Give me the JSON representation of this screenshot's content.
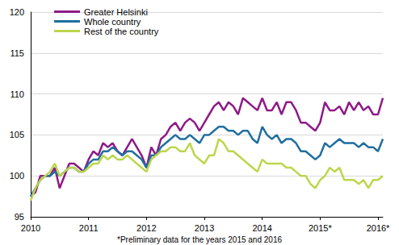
{
  "chart_data": {
    "type": "line",
    "categories": [
      "2010",
      null,
      null,
      null,
      null,
      null,
      null,
      null,
      null,
      null,
      null,
      null,
      "2011",
      null,
      null,
      null,
      null,
      null,
      null,
      null,
      null,
      null,
      null,
      null,
      "2012",
      null,
      null,
      null,
      null,
      null,
      null,
      null,
      null,
      null,
      null,
      null,
      "2013",
      null,
      null,
      null,
      null,
      null,
      null,
      null,
      null,
      null,
      null,
      null,
      "2014",
      null,
      null,
      null,
      null,
      null,
      null,
      null,
      null,
      null,
      null,
      null,
      "2015*",
      null,
      null,
      null,
      null,
      null,
      null,
      null,
      null,
      null,
      null,
      null,
      "2016*",
      null
    ],
    "series": [
      {
        "name": "Greater Helsinki",
        "color": "#8e1a88",
        "values": [
          97.5,
          98,
          100,
          100,
          100,
          101,
          98.5,
          100,
          101.5,
          101.5,
          101,
          100.5,
          102,
          103,
          102.5,
          104,
          103.5,
          104,
          103,
          102.5,
          103.5,
          104.5,
          103.5,
          102.5,
          101,
          103.5,
          102.5,
          104.5,
          105,
          106,
          106.5,
          105.5,
          106.5,
          107,
          106.5,
          105.5,
          106.5,
          107.5,
          108.5,
          109,
          108,
          109,
          108.5,
          107.5,
          109.5,
          109,
          108.5,
          108,
          109.5,
          108,
          108,
          109,
          107.5,
          109,
          109,
          108,
          106.5,
          106.5,
          106,
          105.5,
          106.5,
          109,
          108,
          108,
          108.5,
          107.5,
          109,
          108,
          109,
          108,
          108.5,
          107.5,
          107.5,
          109.5
        ]
      },
      {
        "name": "Whole country",
        "color": "#1f6f9f",
        "values": [
          97.5,
          98.5,
          99.5,
          100,
          100,
          100.5,
          100,
          100.5,
          101,
          101,
          100.5,
          100.5,
          101.5,
          102,
          102,
          103,
          103,
          103.5,
          103,
          102.5,
          103,
          103,
          102.5,
          102,
          101,
          102.5,
          102.5,
          103.5,
          104,
          104.5,
          105,
          104.5,
          104.5,
          105,
          104.5,
          104,
          105,
          105,
          105.5,
          106,
          106,
          105.5,
          105.5,
          105,
          105.5,
          105.5,
          104.5,
          104,
          106,
          105,
          104.5,
          105,
          104,
          104.5,
          104.5,
          104,
          103,
          103,
          102.5,
          102,
          102.5,
          104,
          103.5,
          104,
          104.5,
          104,
          104,
          104,
          103.5,
          104,
          103.5,
          103.5,
          103,
          104.5
        ]
      },
      {
        "name": "Rest of the country",
        "color": "#bcd64b",
        "values": [
          97,
          98.5,
          99.5,
          100,
          100.5,
          101.5,
          100,
          100.5,
          101,
          101,
          100.5,
          100.5,
          101,
          101.5,
          101.5,
          102.5,
          102,
          102.5,
          102,
          102,
          102.5,
          102,
          101.5,
          101,
          100.5,
          102,
          102.5,
          103,
          103,
          103.5,
          103.5,
          103,
          103,
          104,
          102.5,
          102,
          101.5,
          102.5,
          102.5,
          104.5,
          104,
          103,
          103,
          102.5,
          102,
          101.5,
          101,
          100.5,
          102,
          101.5,
          101.5,
          101.5,
          101.5,
          101,
          101,
          100.5,
          100,
          100,
          99,
          98.5,
          99.5,
          100,
          101,
          100.5,
          101,
          99.5,
          99.5,
          99.5,
          99,
          99.5,
          98.5,
          99.5,
          99.5,
          100
        ]
      }
    ],
    "ylim": [
      95,
      120
    ],
    "yticks": [
      95,
      100,
      105,
      110,
      115,
      120
    ],
    "grid": true,
    "legend": "top-left",
    "annotations": [
      "*Preliminary data for the years 2015 and 2016"
    ]
  }
}
